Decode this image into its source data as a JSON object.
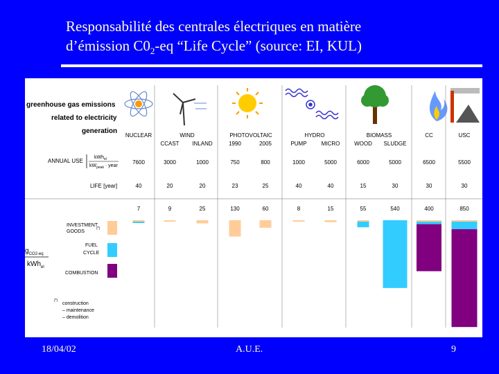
{
  "slide": {
    "title_line1": "Responsabilité des centrales électriques en matière",
    "title_line2_pre": "d’émission C0",
    "title_line2_sub": "2",
    "title_line2_post": "-eq “Life Cycle” (source: EI, KUL)",
    "footer_date": "18/04/02",
    "footer_center": "A.U.E.",
    "footer_page": "9"
  },
  "colors": {
    "background": "#0000ff",
    "title_text": "#ffffcc",
    "investment": "#ffcc99",
    "fuel_cycle": "#33ccff",
    "combustion": "#800080"
  },
  "chart_data": {
    "type": "bar",
    "stacked": true,
    "header_label": [
      "greenhouse gas emissions",
      "related to electricity",
      "generation"
    ],
    "groups": [
      "NUCLEAR",
      "WIND",
      "PHOTOVOLTAIC",
      "HYDRO",
      "BIOMASS",
      "CC",
      "USC"
    ],
    "categories": [
      "",
      "CCAST",
      "INLAND",
      "1990",
      "2005",
      "PUMP",
      "MICRO",
      "WOOD",
      "SLUDGE",
      "",
      ""
    ],
    "annual_use_label": "ANNUAL USE",
    "annual_use_unit_num": "kWh",
    "annual_use_unit_num_sub": "el",
    "annual_use_unit_den": "kW",
    "annual_use_unit_den_sub": "peak",
    "annual_use_unit_den_post": " · year",
    "annual_use": [
      "7600",
      "3000",
      "1000",
      "750",
      "800",
      "1000",
      "5000",
      "6000",
      "5000",
      "6500",
      "5500"
    ],
    "life_label": "LIFE  [year]",
    "life": [
      "40",
      "20",
      "20",
      "23",
      "25",
      "40",
      "40",
      "15",
      "30",
      "30",
      "30"
    ],
    "totals": [
      "7",
      "9",
      "25",
      "130",
      "60",
      "8",
      "15",
      "55",
      "540",
      "400",
      "850"
    ],
    "series": [
      {
        "name": "INVESTMENT",
        "values": [
          2,
          9,
          25,
          130,
          60,
          8,
          15,
          10,
          0,
          5,
          10
        ]
      },
      {
        "name": "FUEL CYCLE",
        "values": [
          5,
          0,
          0,
          0,
          0,
          0,
          0,
          45,
          540,
          20,
          60
        ]
      },
      {
        "name": "COMBUSTION",
        "values": [
          0,
          0,
          0,
          0,
          0,
          0,
          0,
          0,
          0,
          375,
          780
        ]
      }
    ],
    "legend": {
      "investment_line1": "INVESTMENT",
      "investment_line2": "GOODS",
      "investment_sup": "(*)",
      "fuel_line1": "FUEL",
      "fuel_line2": "CYCLE",
      "combustion": "COMBUSTION"
    },
    "ylabel_top": "g",
    "ylabel_top_sub": "CO2-eq",
    "ylabel_bottom": "kWh",
    "ylabel_bottom_sub": "el",
    "ylim": [
      0,
      850
    ],
    "footnote_mark": "(*)",
    "footnote": [
      "construction",
      "– maintenance",
      "– demolition"
    ]
  }
}
